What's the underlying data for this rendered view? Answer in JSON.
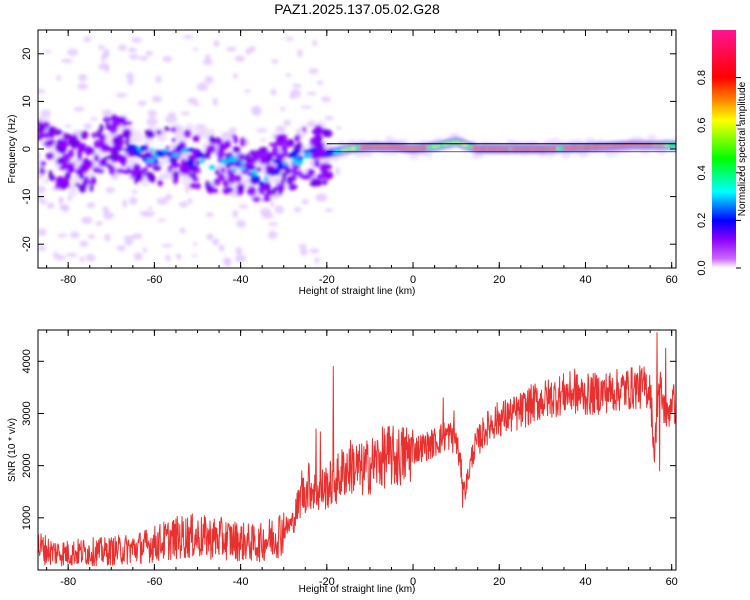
{
  "title": "PAZ1.2025.137.05.02.G28",
  "chart_data": [
    {
      "type": "heatmap",
      "xlabel": "Height of straight line (km)",
      "ylabel": "Frequency (Hz)",
      "xlim": [
        -87,
        61
      ],
      "ylim": [
        -25,
        25
      ],
      "x_ticks": [
        -80,
        -60,
        -40,
        -20,
        0,
        20,
        40,
        60
      ],
      "y_ticks": [
        -20,
        -10,
        0,
        10,
        20
      ],
      "colorbar": {
        "label": "Normalized spectral amplitude",
        "range": [
          0,
          1
        ],
        "ticks": [
          0.0,
          0.2,
          0.4,
          0.6,
          0.8
        ],
        "colormap": [
          "#ffffff",
          "#8b00ff",
          "#0000ff",
          "#00ffff",
          "#00ff00",
          "#ffff00",
          "#ff0000",
          "#ff1493"
        ]
      },
      "frequency_track": [
        {
          "x": -85,
          "f": -1.0
        },
        {
          "x": -80,
          "f": -3.0
        },
        {
          "x": -75,
          "f": -2.5
        },
        {
          "x": -70,
          "f": 1.5
        },
        {
          "x": -65,
          "f": -0.5
        },
        {
          "x": -60,
          "f": -1.5
        },
        {
          "x": -55,
          "f": -1.0
        },
        {
          "x": -50,
          "f": -2.0
        },
        {
          "x": -45,
          "f": -3.0
        },
        {
          "x": -40,
          "f": -3.5
        },
        {
          "x": -35,
          "f": -6.0
        },
        {
          "x": -30,
          "f": -3.0
        },
        {
          "x": -25,
          "f": -1.5
        },
        {
          "x": -20,
          "f": -1.0
        },
        {
          "x": -15,
          "f": 0.0
        },
        {
          "x": -10,
          "f": 0.5
        },
        {
          "x": -5,
          "f": 0.5
        },
        {
          "x": 0,
          "f": 0.0
        },
        {
          "x": 5,
          "f": 0.5
        },
        {
          "x": 10,
          "f": 1.5
        },
        {
          "x": 15,
          "f": 0.0
        },
        {
          "x": 20,
          "f": 0.0
        },
        {
          "x": 30,
          "f": 0.0
        },
        {
          "x": 40,
          "f": 0.3
        },
        {
          "x": 50,
          "f": 0.8
        },
        {
          "x": 60,
          "f": 0.8
        }
      ]
    },
    {
      "type": "line",
      "xlabel": "Height of straight line (km)",
      "ylabel": "SNR (10 * v/v)",
      "xlim": [
        -87,
        61
      ],
      "ylim": [
        0,
        4600
      ],
      "x_ticks": [
        -80,
        -60,
        -40,
        -20,
        0,
        20,
        40,
        60
      ],
      "y_ticks": [
        1000,
        2000,
        3000,
        4000
      ],
      "line_color": "#e8312f",
      "series": [
        {
          "x": [
            -87,
            -84,
            -80,
            -76,
            -72,
            -68,
            -64,
            -60,
            -56,
            -52,
            -48,
            -44,
            -40,
            -36,
            -32,
            -28,
            -26,
            -24,
            -22,
            -20,
            -18,
            -16,
            -14,
            -12,
            -10,
            -8,
            -6,
            -4,
            -2,
            0,
            2,
            4,
            6,
            8,
            10,
            12,
            14,
            16,
            18,
            20,
            24,
            28,
            32,
            36,
            40,
            44,
            48,
            52,
            55,
            56,
            57,
            58,
            59,
            60,
            61
          ],
          "y": [
            450,
            350,
            320,
            350,
            350,
            380,
            420,
            500,
            600,
            650,
            620,
            600,
            550,
            500,
            650,
            900,
            1400,
            1600,
            1500,
            1600,
            1700,
            1900,
            2000,
            1900,
            2000,
            2100,
            2200,
            2150,
            2200,
            2300,
            2350,
            2400,
            2500,
            2600,
            2500,
            1500,
            2300,
            2600,
            2800,
            2900,
            3000,
            3200,
            3300,
            3400,
            3350,
            3400,
            3450,
            3500,
            3500,
            2200,
            3600,
            3200,
            2900,
            3300,
            3100
          ]
        }
      ]
    }
  ]
}
